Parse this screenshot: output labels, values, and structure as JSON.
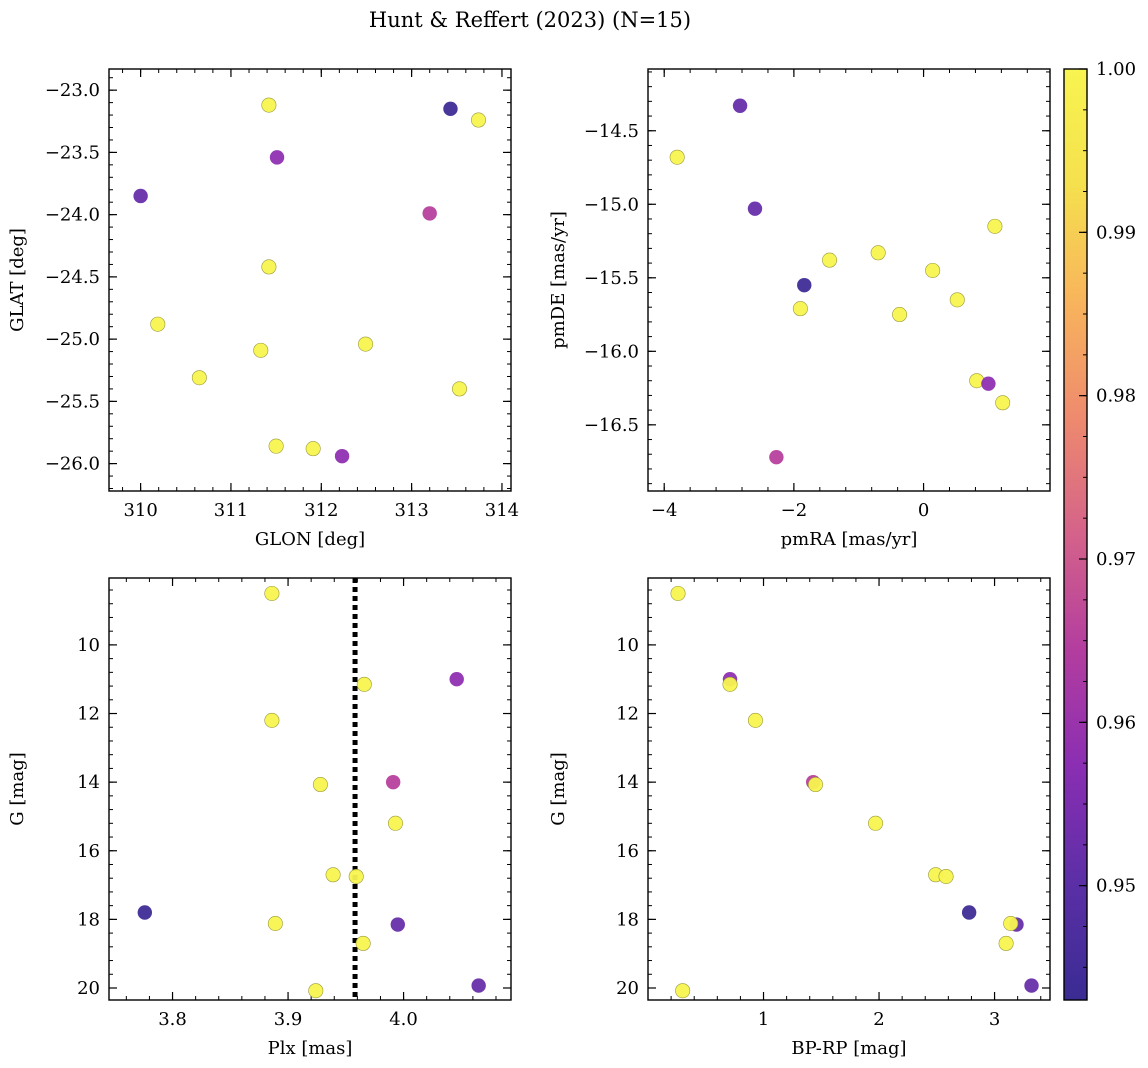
{
  "title": "Hunt & Reffert (2023) (N=15)",
  "colormap": {
    "name": "plasma",
    "min": 0.943,
    "max": 1.0,
    "ticks": [
      "1.00",
      "0.99",
      "0.98",
      "0.97",
      "0.96",
      "0.95"
    ],
    "tick_values": [
      1.0,
      0.99,
      0.98,
      0.97,
      0.96,
      0.95
    ],
    "stops": [
      "#3a2c93",
      "#5b2fa6",
      "#8a2eb3",
      "#b33d9f",
      "#d4628a",
      "#ee8a6e",
      "#f8b45c",
      "#f5e04e",
      "#f8f450"
    ]
  },
  "chart_data": [
    {
      "type": "scatter",
      "name": "sky",
      "xlabel": "GLON [deg]",
      "ylabel": "GLAT [deg]",
      "xlim": [
        309.65,
        314.1
      ],
      "ylim": [
        -26.22,
        -22.83
      ],
      "xticks": [
        310,
        311,
        312,
        313,
        314
      ],
      "xtick_labels": [
        "310",
        "311",
        "312",
        "313",
        "314"
      ],
      "yticks": [
        -23.0,
        -23.5,
        -24.0,
        -24.5,
        -25.0,
        -25.5,
        -26.0
      ],
      "ytick_labels": [
        "−23.0",
        "−23.5",
        "−24.0",
        "−24.5",
        "−25.0",
        "−25.5",
        "−26.0"
      ],
      "y_inverted": false,
      "points": [
        {
          "x": 311.42,
          "y": -23.12,
          "p": 1.0
        },
        {
          "x": 313.43,
          "y": -23.15,
          "p": 0.944
        },
        {
          "x": 313.74,
          "y": -23.24,
          "p": 1.0
        },
        {
          "x": 311.51,
          "y": -23.54,
          "p": 0.958
        },
        {
          "x": 310.0,
          "y": -23.85,
          "p": 0.952
        },
        {
          "x": 313.2,
          "y": -23.99,
          "p": 0.965
        },
        {
          "x": 311.42,
          "y": -24.42,
          "p": 1.0
        },
        {
          "x": 310.19,
          "y": -24.88,
          "p": 1.0
        },
        {
          "x": 312.49,
          "y": -25.04,
          "p": 1.0
        },
        {
          "x": 311.33,
          "y": -25.09,
          "p": 1.0
        },
        {
          "x": 310.65,
          "y": -25.31,
          "p": 1.0
        },
        {
          "x": 313.53,
          "y": -25.4,
          "p": 1.0
        },
        {
          "x": 311.5,
          "y": -25.86,
          "p": 1.0
        },
        {
          "x": 311.91,
          "y": -25.88,
          "p": 1.0
        },
        {
          "x": 312.23,
          "y": -25.94,
          "p": 0.958
        }
      ]
    },
    {
      "type": "scatter",
      "name": "proper-motion",
      "xlabel": "pmRA [mas/yr]",
      "ylabel": "pmDE [mas/yr]",
      "xlim": [
        -4.25,
        1.95
      ],
      "ylim": [
        -16.95,
        -14.08
      ],
      "xticks": [
        -4,
        -2,
        0
      ],
      "xtick_labels": [
        "−4",
        "−2",
        "0"
      ],
      "yticks": [
        -14.5,
        -15.0,
        -15.5,
        -16.0,
        -16.5
      ],
      "ytick_labels": [
        "−14.5",
        "−15.0",
        "−15.5",
        "−16.0",
        "−16.5"
      ],
      "y_inverted": false,
      "points": [
        {
          "x": -2.83,
          "y": -14.33,
          "p": 0.952
        },
        {
          "x": -3.8,
          "y": -14.68,
          "p": 1.0
        },
        {
          "x": -2.6,
          "y": -15.03,
          "p": 0.952
        },
        {
          "x": 1.1,
          "y": -15.15,
          "p": 1.0
        },
        {
          "x": -0.7,
          "y": -15.33,
          "p": 1.0
        },
        {
          "x": -1.45,
          "y": -15.38,
          "p": 1.0
        },
        {
          "x": 0.14,
          "y": -15.45,
          "p": 1.0
        },
        {
          "x": -1.84,
          "y": -15.55,
          "p": 0.944
        },
        {
          "x": 0.52,
          "y": -15.65,
          "p": 1.0
        },
        {
          "x": -1.9,
          "y": -15.71,
          "p": 1.0
        },
        {
          "x": -0.37,
          "y": -15.75,
          "p": 1.0
        },
        {
          "x": 0.82,
          "y": -16.2,
          "p": 1.0
        },
        {
          "x": 1.0,
          "y": -16.22,
          "p": 0.958
        },
        {
          "x": 1.22,
          "y": -16.35,
          "p": 1.0
        },
        {
          "x": -2.27,
          "y": -16.72,
          "p": 0.965
        }
      ]
    },
    {
      "type": "scatter",
      "name": "parallax-magnitude",
      "xlabel": "Plx [mas]",
      "ylabel": "G [mag]",
      "xlim": [
        3.745,
        4.093
      ],
      "ylim": [
        8.05,
        20.35
      ],
      "xticks": [
        3.8,
        3.9,
        4.0
      ],
      "xtick_labels": [
        "3.8",
        "3.9",
        "4.0"
      ],
      "yticks": [
        10,
        12,
        14,
        16,
        18,
        20
      ],
      "ytick_labels": [
        "10",
        "12",
        "14",
        "16",
        "18",
        "20"
      ],
      "y_inverted": true,
      "vline": {
        "x": 3.958,
        "style": "dotted"
      },
      "points": [
        {
          "x": 3.886,
          "y": 8.5,
          "p": 1.0
        },
        {
          "x": 4.046,
          "y": 11.0,
          "p": 0.958
        },
        {
          "x": 3.966,
          "y": 11.15,
          "p": 1.0
        },
        {
          "x": 3.886,
          "y": 12.2,
          "p": 1.0
        },
        {
          "x": 3.991,
          "y": 14.0,
          "p": 0.965
        },
        {
          "x": 3.928,
          "y": 14.07,
          "p": 1.0
        },
        {
          "x": 3.993,
          "y": 15.2,
          "p": 1.0
        },
        {
          "x": 3.939,
          "y": 16.7,
          "p": 1.0
        },
        {
          "x": 3.959,
          "y": 16.75,
          "p": 1.0
        },
        {
          "x": 3.776,
          "y": 17.8,
          "p": 0.944
        },
        {
          "x": 3.889,
          "y": 18.12,
          "p": 1.0
        },
        {
          "x": 3.995,
          "y": 18.15,
          "p": 0.952
        },
        {
          "x": 3.965,
          "y": 18.7,
          "p": 1.0
        },
        {
          "x": 4.065,
          "y": 19.93,
          "p": 0.952
        },
        {
          "x": 3.924,
          "y": 20.08,
          "p": 1.0
        }
      ]
    },
    {
      "type": "scatter",
      "name": "color-magnitude",
      "xlabel": "BP-RP [mag]",
      "ylabel": "G [mag]",
      "xlim": [
        0.0,
        3.48
      ],
      "ylim": [
        8.05,
        20.35
      ],
      "xticks": [
        1,
        2,
        3
      ],
      "xtick_labels": [
        "1",
        "2",
        "3"
      ],
      "yticks": [
        10,
        12,
        14,
        16,
        18,
        20
      ],
      "ytick_labels": [
        "10",
        "12",
        "14",
        "16",
        "18",
        "20"
      ],
      "y_inverted": true,
      "points": [
        {
          "x": 0.26,
          "y": 8.5,
          "p": 1.0
        },
        {
          "x": 0.71,
          "y": 11.0,
          "p": 0.958
        },
        {
          "x": 0.71,
          "y": 11.15,
          "p": 1.0
        },
        {
          "x": 0.93,
          "y": 12.2,
          "p": 1.0
        },
        {
          "x": 1.43,
          "y": 14.0,
          "p": 0.965
        },
        {
          "x": 1.45,
          "y": 14.07,
          "p": 1.0
        },
        {
          "x": 1.97,
          "y": 15.2,
          "p": 1.0
        },
        {
          "x": 2.49,
          "y": 16.7,
          "p": 1.0
        },
        {
          "x": 2.58,
          "y": 16.75,
          "p": 1.0
        },
        {
          "x": 2.78,
          "y": 17.8,
          "p": 0.944
        },
        {
          "x": 3.19,
          "y": 18.15,
          "p": 0.952
        },
        {
          "x": 3.14,
          "y": 18.12,
          "p": 1.0
        },
        {
          "x": 3.1,
          "y": 18.7,
          "p": 1.0
        },
        {
          "x": 3.32,
          "y": 19.93,
          "p": 0.952
        },
        {
          "x": 0.3,
          "y": 20.08,
          "p": 1.0
        }
      ]
    }
  ]
}
